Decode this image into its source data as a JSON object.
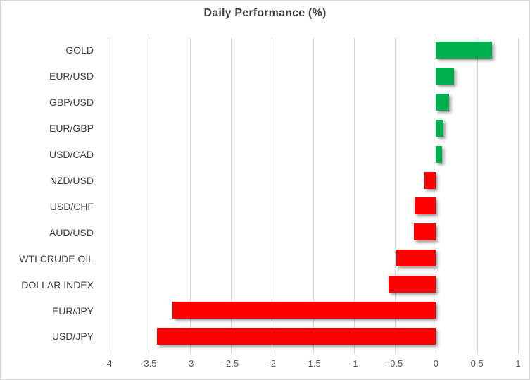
{
  "title": "Daily Performance (%)",
  "chart_data": {
    "type": "bar",
    "orientation": "horizontal",
    "title": "Daily Performance (%)",
    "categories": [
      "GOLD",
      "EUR/USD",
      "GBP/USD",
      "EUR/GBP",
      "USD/CAD",
      "NZD/USD",
      "USD/CHF",
      "AUD/USD",
      "WTI CRUDE OIL",
      "DOLLAR INDEX",
      "EUR/JPY",
      "USD/JPY"
    ],
    "values": [
      0.68,
      0.22,
      0.16,
      0.09,
      0.07,
      -0.14,
      -0.26,
      -0.27,
      -0.48,
      -0.58,
      -3.21,
      -3.4
    ],
    "xlabel": "",
    "ylabel": "",
    "xlim": [
      -4,
      1
    ],
    "tick_step": 0.5,
    "tick_labels": [
      "-4",
      "-3.5",
      "-3",
      "-2.5",
      "-2",
      "-1.5",
      "-1",
      "-0.5",
      "0",
      "0.5",
      "1"
    ],
    "grid": true,
    "legend_position": "none",
    "colors": {
      "positive": "#00B050",
      "negative": "#FF0000",
      "gridline": "#D9D9D9",
      "title_text": "#3F3F3F",
      "category_text": "#404040",
      "tick_text": "#595959"
    }
  }
}
